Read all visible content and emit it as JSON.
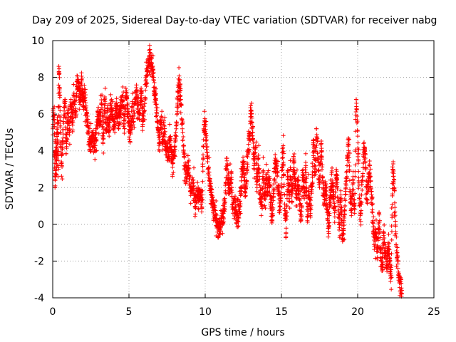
{
  "chart_data": {
    "type": "scatter",
    "title": "Day 209 of 2025, Sidereal Day-to-day VTEC variation (SDTVAR) for receiver nabg",
    "xlabel": "GPS time / hours",
    "ylabel": "SDTVAR / TECUs",
    "xlim": [
      0,
      25
    ],
    "ylim": [
      -4,
      10
    ],
    "xticks": [
      "0",
      "5",
      "10",
      "15",
      "20",
      "25"
    ],
    "yticks": [
      "-4",
      "-2",
      "0",
      "2",
      "4",
      "6",
      "8",
      "10"
    ],
    "grid": true,
    "marker": "plus",
    "color": "#ff0000",
    "series": [
      {
        "name": "SDTVAR",
        "points": [
          [
            0.0,
            5.2
          ],
          [
            0.1,
            6.4
          ],
          [
            0.15,
            2.0
          ],
          [
            0.2,
            4.6
          ],
          [
            0.25,
            3.0
          ],
          [
            0.3,
            5.8
          ],
          [
            0.35,
            2.6
          ],
          [
            0.4,
            8.6
          ],
          [
            0.45,
            7.2
          ],
          [
            0.5,
            5.0
          ],
          [
            0.6,
            3.2
          ],
          [
            0.7,
            5.6
          ],
          [
            0.8,
            6.8
          ],
          [
            0.9,
            4.4
          ],
          [
            1.0,
            6.2
          ],
          [
            1.1,
            5.0
          ],
          [
            1.2,
            6.8
          ],
          [
            1.3,
            5.4
          ],
          [
            1.4,
            7.0
          ],
          [
            1.5,
            6.0
          ],
          [
            1.6,
            7.8
          ],
          [
            1.7,
            7.4
          ],
          [
            1.8,
            6.8
          ],
          [
            1.9,
            7.8
          ],
          [
            2.0,
            6.4
          ],
          [
            2.1,
            7.2
          ],
          [
            2.2,
            6.0
          ],
          [
            2.3,
            5.4
          ],
          [
            2.4,
            4.6
          ],
          [
            2.5,
            4.2
          ],
          [
            2.6,
            5.0
          ],
          [
            2.7,
            4.2
          ],
          [
            2.8,
            4.6
          ],
          [
            2.9,
            5.4
          ],
          [
            3.0,
            6.0
          ],
          [
            3.1,
            5.6
          ],
          [
            3.2,
            6.6
          ],
          [
            3.3,
            4.4
          ],
          [
            3.4,
            6.8
          ],
          [
            3.5,
            5.2
          ],
          [
            3.6,
            6.2
          ],
          [
            3.7,
            4.8
          ],
          [
            3.8,
            6.6
          ],
          [
            3.9,
            5.8
          ],
          [
            4.0,
            5.2
          ],
          [
            4.1,
            5.8
          ],
          [
            4.2,
            6.6
          ],
          [
            4.3,
            5.4
          ],
          [
            4.4,
            6.2
          ],
          [
            4.5,
            6.4
          ],
          [
            4.6,
            7.0
          ],
          [
            4.7,
            5.2
          ],
          [
            4.8,
            7.4
          ],
          [
            4.9,
            6.0
          ],
          [
            5.0,
            5.6
          ],
          [
            5.1,
            5.0
          ],
          [
            5.2,
            6.4
          ],
          [
            5.3,
            5.6
          ],
          [
            5.4,
            6.8
          ],
          [
            5.5,
            7.2
          ],
          [
            5.6,
            5.8
          ],
          [
            5.7,
            6.0
          ],
          [
            5.8,
            7.4
          ],
          [
            5.9,
            5.6
          ],
          [
            6.0,
            6.2
          ],
          [
            6.1,
            7.8
          ],
          [
            6.2,
            8.4
          ],
          [
            6.3,
            8.8
          ],
          [
            6.4,
            9.0
          ],
          [
            6.5,
            8.6
          ],
          [
            6.6,
            8.0
          ],
          [
            6.7,
            7.0
          ],
          [
            6.8,
            6.2
          ],
          [
            6.9,
            5.2
          ],
          [
            7.0,
            4.6
          ],
          [
            7.1,
            5.8
          ],
          [
            7.2,
            4.4
          ],
          [
            7.3,
            5.4
          ],
          [
            7.4,
            4.0
          ],
          [
            7.5,
            4.2
          ],
          [
            7.6,
            3.8
          ],
          [
            7.7,
            4.6
          ],
          [
            7.8,
            4.0
          ],
          [
            7.9,
            3.6
          ],
          [
            8.0,
            4.2
          ],
          [
            8.1,
            5.2
          ],
          [
            8.2,
            7.2
          ],
          [
            8.3,
            7.8
          ],
          [
            8.4,
            6.8
          ],
          [
            8.5,
            5.2
          ],
          [
            8.6,
            3.8
          ],
          [
            8.7,
            3.2
          ],
          [
            8.8,
            2.6
          ],
          [
            8.9,
            3.4
          ],
          [
            9.0,
            2.2
          ],
          [
            9.1,
            1.8
          ],
          [
            9.2,
            2.4
          ],
          [
            9.3,
            1.4
          ],
          [
            9.4,
            1.2
          ],
          [
            9.5,
            1.8
          ],
          [
            9.6,
            1.4
          ],
          [
            9.7,
            1.6
          ],
          [
            9.8,
            1.2
          ],
          [
            9.9,
            5.2
          ],
          [
            10.0,
            5.4
          ],
          [
            10.1,
            4.2
          ],
          [
            10.2,
            3.0
          ],
          [
            10.3,
            2.2
          ],
          [
            10.4,
            1.6
          ],
          [
            10.5,
            1.0
          ],
          [
            10.6,
            0.8
          ],
          [
            10.7,
            0.2
          ],
          [
            10.8,
            -0.1
          ],
          [
            10.9,
            0.0
          ],
          [
            11.0,
            -0.2
          ],
          [
            11.1,
            0.2
          ],
          [
            11.2,
            0.6
          ],
          [
            11.3,
            1.2
          ],
          [
            11.4,
            3.6
          ],
          [
            11.5,
            2.4
          ],
          [
            11.6,
            1.8
          ],
          [
            11.7,
            2.8
          ],
          [
            11.8,
            0.8
          ],
          [
            11.9,
            1.4
          ],
          [
            12.0,
            0.6
          ],
          [
            12.1,
            0.2
          ],
          [
            12.2,
            0.4
          ],
          [
            12.3,
            1.0
          ],
          [
            12.4,
            2.6
          ],
          [
            12.5,
            3.4
          ],
          [
            12.6,
            1.8
          ],
          [
            12.7,
            2.2
          ],
          [
            12.8,
            3.8
          ],
          [
            12.9,
            4.8
          ],
          [
            13.0,
            6.2
          ],
          [
            13.1,
            5.0
          ],
          [
            13.2,
            3.2
          ],
          [
            13.3,
            4.2
          ],
          [
            13.4,
            2.0
          ],
          [
            13.5,
            3.6
          ],
          [
            13.6,
            1.6
          ],
          [
            13.7,
            1.2
          ],
          [
            13.8,
            2.8
          ],
          [
            13.9,
            1.4
          ],
          [
            14.0,
            2.4
          ],
          [
            14.1,
            1.8
          ],
          [
            14.2,
            2.6
          ],
          [
            14.3,
            1.0
          ],
          [
            14.4,
            0.2
          ],
          [
            14.5,
            2.2
          ],
          [
            14.6,
            3.6
          ],
          [
            14.7,
            3.2
          ],
          [
            14.8,
            1.8
          ],
          [
            14.9,
            1.0
          ],
          [
            15.0,
            2.2
          ],
          [
            15.1,
            4.2
          ],
          [
            15.2,
            1.6
          ],
          [
            15.3,
            -0.5
          ],
          [
            15.4,
            2.8
          ],
          [
            15.5,
            1.4
          ],
          [
            15.6,
            3.0
          ],
          [
            15.7,
            1.2
          ],
          [
            15.8,
            3.6
          ],
          [
            15.9,
            2.2
          ],
          [
            16.0,
            1.6
          ],
          [
            16.1,
            2.4
          ],
          [
            16.2,
            1.0
          ],
          [
            16.3,
            0.4
          ],
          [
            16.4,
            2.8
          ],
          [
            16.5,
            1.4
          ],
          [
            16.6,
            3.2
          ],
          [
            16.7,
            0.2
          ],
          [
            16.8,
            1.8
          ],
          [
            16.9,
            0.6
          ],
          [
            17.0,
            2.2
          ],
          [
            17.1,
            4.6
          ],
          [
            17.2,
            2.8
          ],
          [
            17.3,
            5.2
          ],
          [
            17.4,
            3.6
          ],
          [
            17.5,
            2.0
          ],
          [
            17.6,
            4.4
          ],
          [
            17.7,
            2.6
          ],
          [
            17.8,
            1.2
          ],
          [
            17.9,
            2.2
          ],
          [
            18.0,
            0.8
          ],
          [
            18.1,
            -0.2
          ],
          [
            18.2,
            1.2
          ],
          [
            18.3,
            2.8
          ],
          [
            18.4,
            1.6
          ],
          [
            18.5,
            0.4
          ],
          [
            18.6,
            3.0
          ],
          [
            18.7,
            1.2
          ],
          [
            18.8,
            0.0
          ],
          [
            18.9,
            1.6
          ],
          [
            19.0,
            -0.8
          ],
          [
            19.1,
            0.2
          ],
          [
            19.2,
            1.8
          ],
          [
            19.3,
            3.2
          ],
          [
            19.4,
            4.6
          ],
          [
            19.5,
            1.6
          ],
          [
            19.6,
            0.8
          ],
          [
            19.7,
            2.4
          ],
          [
            19.8,
            0.6
          ],
          [
            19.9,
            6.8
          ],
          [
            20.0,
            4.8
          ],
          [
            20.1,
            1.4
          ],
          [
            20.2,
            0.6
          ],
          [
            20.3,
            2.4
          ],
          [
            20.4,
            4.2
          ],
          [
            20.5,
            3.6
          ],
          [
            20.6,
            1.2
          ],
          [
            20.7,
            2.6
          ],
          [
            20.8,
            3.2
          ],
          [
            20.9,
            1.8
          ],
          [
            21.0,
            0.2
          ],
          [
            21.1,
            -1.2
          ],
          [
            21.2,
            -0.4
          ],
          [
            21.3,
            -1.8
          ],
          [
            21.4,
            0.6
          ],
          [
            21.5,
            -1.4
          ],
          [
            21.6,
            -2.2
          ],
          [
            21.7,
            -0.6
          ],
          [
            21.8,
            -1.6
          ],
          [
            21.9,
            -2.4
          ],
          [
            22.0,
            -1.0
          ],
          [
            22.1,
            -2.0
          ],
          [
            22.2,
            -2.8
          ],
          [
            22.3,
            3.0
          ],
          [
            22.4,
            2.0
          ],
          [
            22.5,
            -0.4
          ],
          [
            22.6,
            -1.8
          ],
          [
            22.7,
            -2.8
          ],
          [
            22.8,
            -3.2
          ],
          [
            22.9,
            -3.6
          ]
        ]
      }
    ]
  }
}
